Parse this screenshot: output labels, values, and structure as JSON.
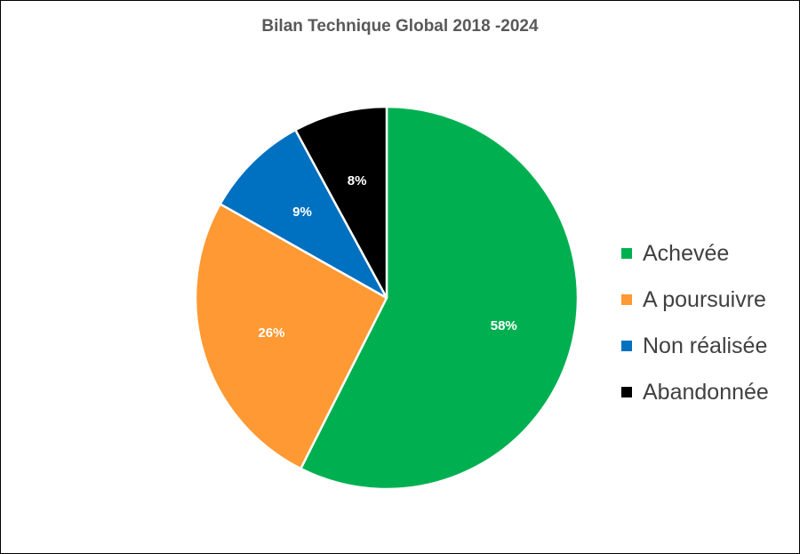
{
  "chart_data": {
    "type": "pie",
    "title": "Bilan Technique Global 2018 -2024",
    "slices": [
      {
        "label": "Achevée",
        "value": 58,
        "display": "58%",
        "color": "#00b050"
      },
      {
        "label": "A poursuivre",
        "value": 26,
        "display": "26%",
        "color": "#ff9933"
      },
      {
        "label": "Non réalisée",
        "value": 9,
        "display": "9%",
        "color": "#0070c0"
      },
      {
        "label": "Abandonnée",
        "value": 8,
        "display": "8%",
        "color": "#000000"
      }
    ],
    "legend_position": "right",
    "start_angle_deg": 0,
    "direction": "clockwise"
  }
}
